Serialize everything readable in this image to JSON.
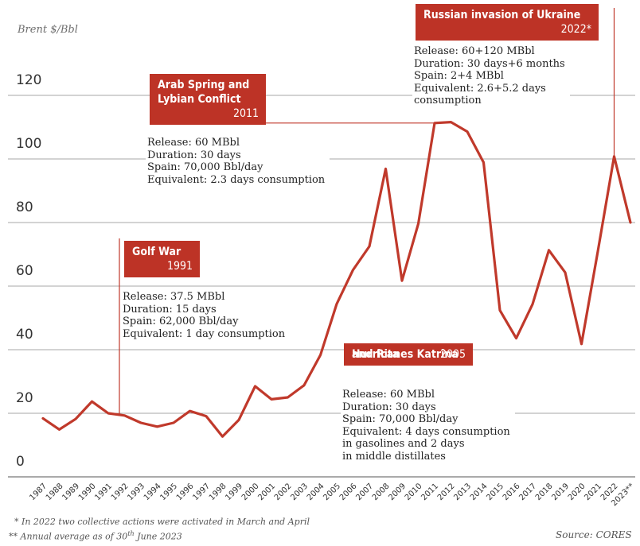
{
  "chart_data": {
    "type": "line",
    "ylabel": "Brent $/Bbl",
    "ylim": [
      0,
      120
    ],
    "yticks": [
      0,
      20,
      40,
      60,
      80,
      100,
      120
    ],
    "grid": true,
    "series_color": "#c0392b",
    "x": [
      "1987",
      "1988",
      "1989",
      "1990",
      "1991",
      "1992",
      "1993",
      "1994",
      "1995",
      "1996",
      "1997",
      "1998",
      "1999",
      "2000",
      "2001",
      "2002",
      "2003",
      "2004",
      "2005",
      "2006",
      "2007",
      "2008",
      "2009",
      "2010",
      "2011",
      "2012",
      "2013",
      "2014",
      "2015",
      "2016",
      "2017",
      "2018",
      "2019",
      "2020",
      "2021",
      "2022",
      "2023**"
    ],
    "series": [
      {
        "values": [
          18.4,
          14.9,
          18.2,
          23.7,
          20.0,
          19.3,
          17.0,
          15.8,
          17.0,
          20.7,
          19.1,
          12.7,
          17.9,
          28.5,
          24.4,
          25.0,
          28.8,
          38.3,
          54.4,
          65.1,
          72.5,
          96.9,
          61.7,
          79.6,
          111.3,
          111.6,
          108.6,
          98.9,
          52.4,
          43.6,
          54.3,
          71.3,
          64.3,
          41.8,
          70.9,
          100.8,
          80.0
        ]
      }
    ],
    "annotations": [
      {
        "id": "gulf-war",
        "title": "Golf War",
        "year_label": "1991",
        "x": "1991",
        "details": [
          "Release: 37.5 MBbl",
          "Duration: 15 days",
          "Spain: 62,000 Bbl/day",
          "Equivalent: 1 day consumption"
        ]
      },
      {
        "id": "arab-spring",
        "title": "Arab Spring and Lybian Conflict",
        "title_lines": [
          "Arab Spring and",
          "Lybian Conflict"
        ],
        "year_label": "2011",
        "x": "2011",
        "details": [
          "Release: 60 MBbl",
          "Duration: 30 days",
          "Spain: 70,000 Bbl/day",
          "Equivalent: 2.3 days consumption"
        ]
      },
      {
        "id": "katrina-rita",
        "title": "Hurricanes Katrina and Rita",
        "title_lines": [
          "Hurricanes Katrina",
          "and Rita"
        ],
        "year_label": "2005",
        "x": "2005",
        "details": [
          "Release: 60 MBbl",
          "Duration: 30 days",
          "Spain: 70,000 Bbl/day",
          "Equivalent: 4 days consumption",
          "in gasolines and 2 days",
          "in middle distillates"
        ]
      },
      {
        "id": "ukraine",
        "title": "Russian invasion of Ukraine",
        "year_label": "2022*",
        "x": "2022",
        "details": [
          "Release: 60+120 MBbl",
          "Duration: 30 days+6 months",
          "Spain: 2+4 MBbl",
          "Equivalent: 2.6+5.2 days",
          "consumption"
        ]
      }
    ]
  },
  "footnotes": {
    "note1": "* In 2022 two collective actions were activated in March and April",
    "note2_prefix": "** Annual average as of 30",
    "note2_sup": "th",
    "note2_suffix": " June 2023",
    "source": "Source: CORES"
  }
}
